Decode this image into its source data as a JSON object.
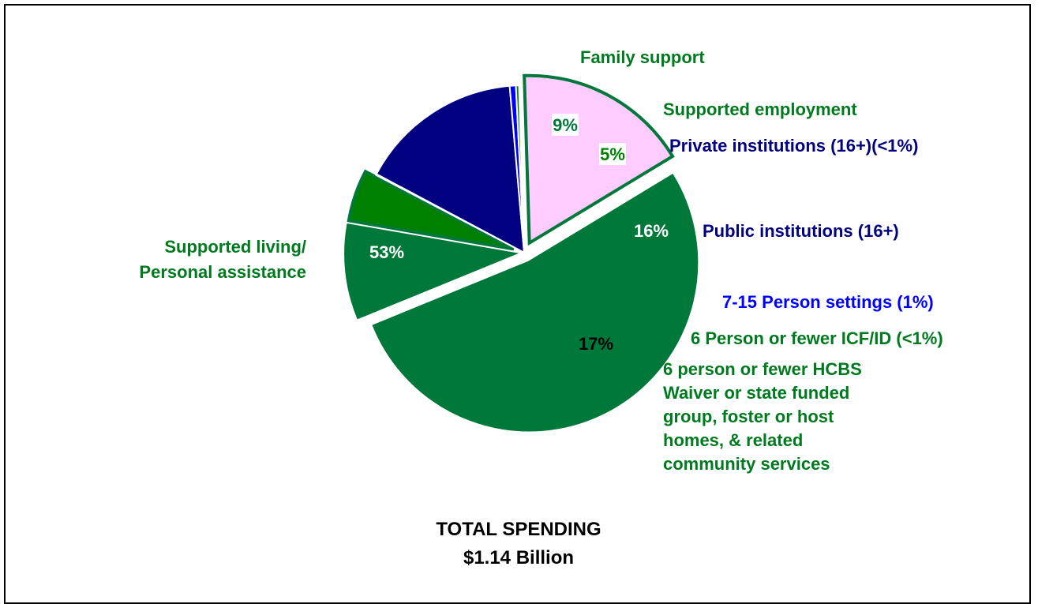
{
  "chart_data": {
    "type": "pie",
    "title": "",
    "footer_lines": [
      "TOTAL SPENDING",
      "$1.14 Billion"
    ],
    "slices": [
      {
        "name": "Public institutions (16+)",
        "label_lines": [
          "Public institutions (16+)"
        ],
        "value": 16,
        "value_label": "16%",
        "color": "#000080",
        "label_color": "#000080",
        "exploded": false
      },
      {
        "name": "7-15 Person settings (1%)",
        "label_lines": [
          "7-15 Person settings (1%)"
        ],
        "value": 0.6,
        "value_label": "",
        "color": "#0000ff",
        "label_color": "#0000ff",
        "exploded": false
      },
      {
        "name": "6 Person or fewer ICF/ID (<1%)",
        "label_lines": [
          "6 Person or fewer ICF/ID (<1%)"
        ],
        "value": 0.3,
        "value_label": "",
        "color": "#008000",
        "label_color": "#007a1f",
        "exploded": false
      },
      {
        "name": "6 person or fewer HCBS Waiver or state funded group, foster or host homes, & related community services",
        "label_lines": [
          "6 person or fewer HCBS",
          "Waiver or state funded",
          "group, foster or host",
          "homes, & related",
          "community services"
        ],
        "value": 17,
        "value_label": "17%",
        "color": "#ffccff",
        "label_color": "#007a1f",
        "exploded": true
      },
      {
        "name": "Supported living/ Personal assistance",
        "label_lines": [
          "Supported living/",
          "Personal assistance"
        ],
        "value": 53,
        "value_label": "53%",
        "color": "#00783a",
        "label_color": "#007a1f",
        "exploded": true
      },
      {
        "name": "Family support",
        "label_lines": [
          "Family support"
        ],
        "value": 9,
        "value_label": "9%",
        "color": "#00783a",
        "label_color": "#007a1f",
        "exploded": true
      },
      {
        "name": "Supported employment",
        "label_lines": [
          "Supported employment"
        ],
        "value": 5,
        "value_label": "5%",
        "color": "#008000",
        "label_color": "#007a1f",
        "exploded": true
      },
      {
        "name": "Private institutions (16+)(<1%)",
        "label_lines": [
          "Private institutions (16+)(<1%)"
        ],
        "value": 0.1,
        "value_label": "",
        "color": "#000080",
        "label_color": "#000080",
        "exploded": false
      }
    ]
  }
}
